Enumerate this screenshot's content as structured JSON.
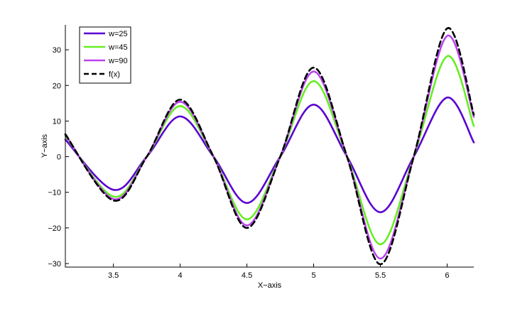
{
  "chart_data": {
    "type": "line",
    "title": "",
    "xlabel": "X−axis",
    "ylabel": "Y−axis",
    "xlim": [
      3.14,
      6.2
    ],
    "ylim": [
      -31,
      37
    ],
    "xticks": [
      3.5,
      4,
      4.5,
      5,
      5.5,
      6
    ],
    "xtick_labels": [
      "3.5",
      "4",
      "4.5",
      "5",
      "5.5",
      "6"
    ],
    "yticks": [
      -30,
      -20,
      -10,
      0,
      10,
      20,
      30
    ],
    "ytick_labels": [
      "−30",
      "−20",
      "−10",
      "0",
      "10",
      "20",
      "30"
    ],
    "grid": false,
    "legend_position": "top-left",
    "series": [
      {
        "name": "w=25",
        "color": "#5a00d2",
        "dash": "solid",
        "x": [
          3.14,
          3.5,
          3.75,
          4.0,
          4.25,
          4.5,
          4.75,
          5.0,
          5.25,
          5.5,
          5.75,
          6.0,
          6.2
        ],
        "y": [
          4.8,
          -9.3,
          0,
          11.3,
          0,
          -13.0,
          0,
          14.6,
          0,
          -15.6,
          0,
          16.6,
          4.0
        ]
      },
      {
        "name": "w=45",
        "color": "#66ee22",
        "dash": "solid",
        "x": [
          3.14,
          3.5,
          3.75,
          4.0,
          4.25,
          4.5,
          4.75,
          5.0,
          5.25,
          5.5,
          5.75,
          6.0,
          6.2
        ],
        "y": [
          5.8,
          -11.2,
          0,
          14.2,
          0,
          -17.6,
          0,
          21.2,
          0,
          -24.6,
          0,
          28.2,
          8.6
        ]
      },
      {
        "name": "w=90",
        "color": "#bb44ee",
        "dash": "solid",
        "x": [
          3.14,
          3.5,
          3.75,
          4.0,
          4.25,
          4.5,
          4.75,
          5.0,
          5.25,
          5.5,
          5.75,
          6.0,
          6.2
        ],
        "y": [
          6.1,
          -11.9,
          0,
          15.4,
          0,
          -19.3,
          0,
          23.9,
          0,
          -28.6,
          0,
          33.9,
          11.2
        ]
      },
      {
        "name": "f(x)",
        "color": "#000000",
        "dash": "dashed",
        "x": [
          3.14,
          3.5,
          3.75,
          4.0,
          4.25,
          4.5,
          4.75,
          5.0,
          5.25,
          5.5,
          5.75,
          6.0,
          6.2
        ],
        "y": [
          6.3,
          -12.3,
          0,
          16.0,
          0,
          -20.0,
          0,
          25.0,
          0,
          -30.2,
          0,
          36.0,
          11.8
        ]
      }
    ]
  }
}
